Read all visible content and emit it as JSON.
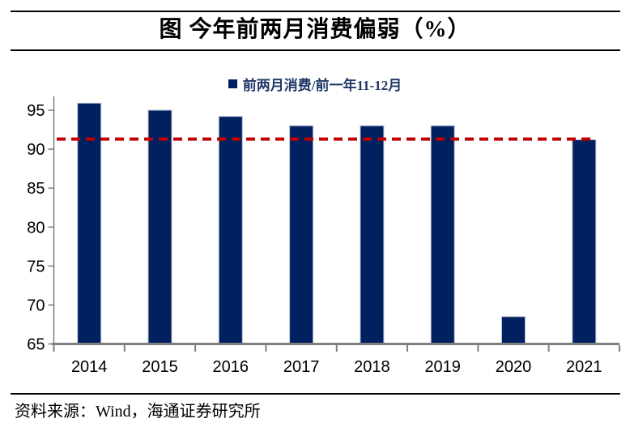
{
  "figure": {
    "title": "图 今年前两月消费偏弱（%）",
    "source": "资料来源：Wind，海通证券研究所"
  },
  "chart_data": {
    "type": "bar",
    "title": "图 今年前两月消费偏弱（%）",
    "series_name": "前两月消费/前一年11-12月",
    "categories": [
      "2014",
      "2015",
      "2016",
      "2017",
      "2018",
      "2019",
      "2020",
      "2021"
    ],
    "values": [
      95.9,
      95.0,
      94.2,
      93.0,
      93.0,
      93.0,
      68.5,
      91.2
    ],
    "ylim": [
      65,
      95
    ],
    "yticks": [
      65,
      70,
      75,
      80,
      85,
      90,
      95
    ],
    "xlabel": "",
    "ylabel": "",
    "grid": false,
    "legend_position": "top-center",
    "reference_line": {
      "value": 91.3,
      "style": "dashed"
    }
  },
  "colors": {
    "bar": "#002060",
    "bar_edge": "#B9BFD4",
    "reference_line": "#C00000",
    "axis": "#7F7F7F",
    "legend_text": "#1F3864",
    "rule": "#000000",
    "tick_text": "#000000"
  }
}
